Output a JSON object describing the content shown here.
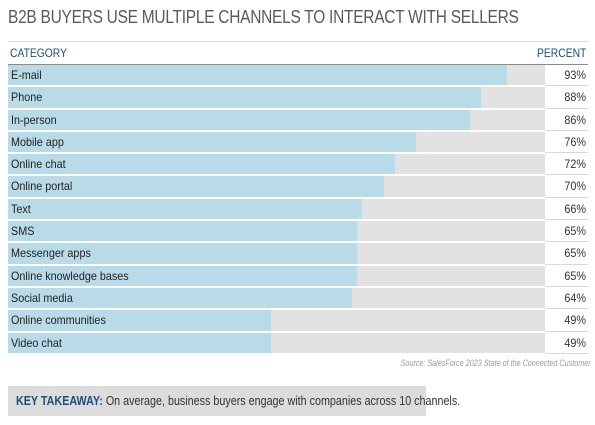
{
  "title": "B2B BUYERS USE MULTIPLE CHANNELS TO INTERACT WITH SELLERS",
  "table_header": {
    "category": "CATEGORY",
    "percent": "PERCENT"
  },
  "chart_data": {
    "type": "bar",
    "orientation": "horizontal",
    "title": "B2B BUYERS USE MULTIPLE CHANNELS TO INTERACT WITH SELLERS",
    "xlabel": "PERCENT",
    "ylabel": "CATEGORY",
    "xlim": [
      0,
      100
    ],
    "categories": [
      "E-mail",
      "Phone",
      "In-person",
      "Mobile app",
      "Online chat",
      "Online portal",
      "Text",
      "SMS",
      "Messenger apps",
      "Online knowledge bases",
      "Social media",
      "Online communities",
      "Video chat"
    ],
    "values": [
      93,
      88,
      86,
      76,
      72,
      70,
      66,
      65,
      65,
      65,
      64,
      49,
      49
    ],
    "value_labels": [
      "93%",
      "88%",
      "86%",
      "76%",
      "72%",
      "70%",
      "66%",
      "65%",
      "65%",
      "65%",
      "64%",
      "49%",
      "49%"
    ],
    "colors": {
      "bar": "#b9dbe7",
      "track": "#e2e2e2"
    },
    "grid": false,
    "legend": "none"
  },
  "source": "Source: SalesForce 2023 State of the Connected Customer",
  "takeaway": {
    "label": "KEY TAKEAWAY:",
    "text": "On average, business buyers engage with companies across 10 channels."
  }
}
